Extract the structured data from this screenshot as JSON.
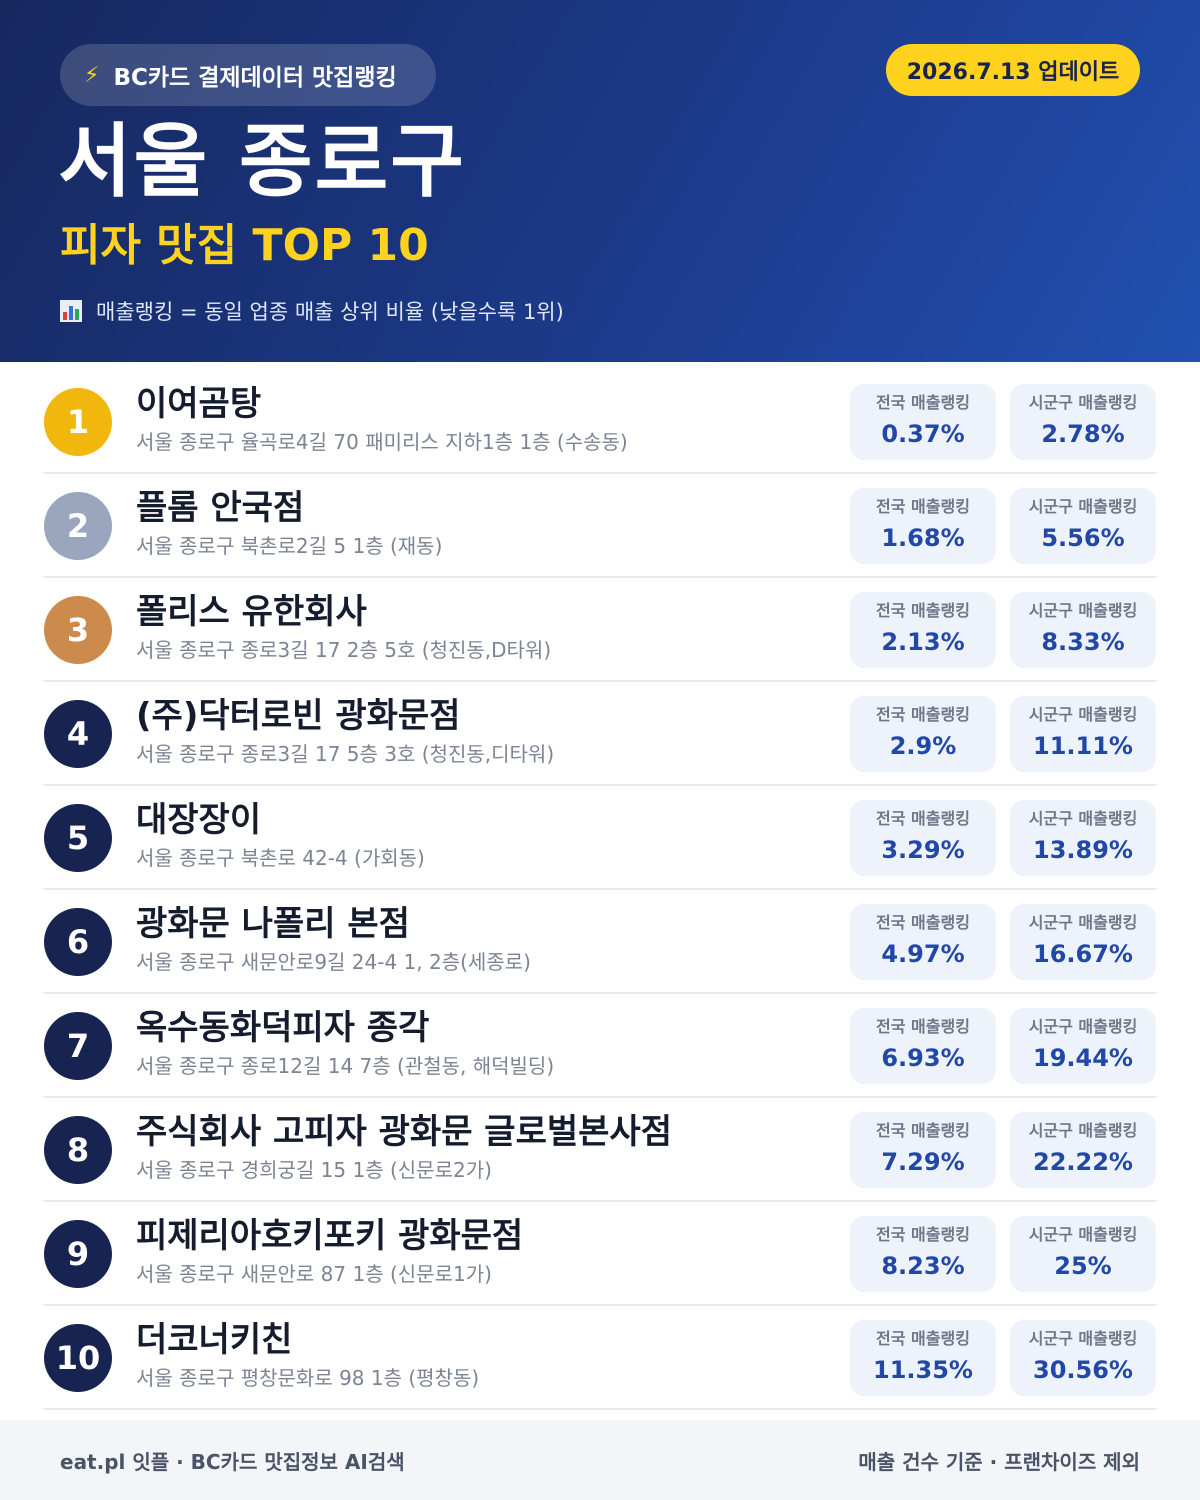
{
  "header": {
    "source_label": "BC카드 결제데이터 맛집랭킹",
    "update_label": "2026.7.13 업데이트",
    "region": "서울 종로구",
    "subtitle": "피자 맛집 TOP 10",
    "legend_note": "매출랭킹 = 동일 업종 매출 상위 비율 (낮을수록 1위)"
  },
  "stat_labels": {
    "national": "전국 매출랭킹",
    "district": "시군구 매출랭킹"
  },
  "accent_colors": {
    "navy": "#172452",
    "yellow": "#ffd21e",
    "gold": "#f2b70c",
    "silver": "#9aa6bd",
    "bronze": "#cc8a4c",
    "value_blue": "#2148a8"
  },
  "restaurants": [
    {
      "rank": "1",
      "name": "이여곰탕",
      "address": "서울 종로구 율곡로4길 70 패미리스 지하1층 1층 (수송동)",
      "national": "0.37%",
      "district": "2.78%"
    },
    {
      "rank": "2",
      "name": "플롬 안국점",
      "address": "서울 종로구 북촌로2길 5 1층 (재동)",
      "national": "1.68%",
      "district": "5.56%"
    },
    {
      "rank": "3",
      "name": "폴리스 유한회사",
      "address": "서울 종로구 종로3길 17 2층 5호 (청진동,D타워)",
      "national": "2.13%",
      "district": "8.33%"
    },
    {
      "rank": "4",
      "name": "(주)닥터로빈 광화문점",
      "address": "서울 종로구 종로3길 17 5층 3호 (청진동,디타워)",
      "national": "2.9%",
      "district": "11.11%"
    },
    {
      "rank": "5",
      "name": "대장장이",
      "address": "서울 종로구 북촌로 42-4 (가회동)",
      "national": "3.29%",
      "district": "13.89%"
    },
    {
      "rank": "6",
      "name": "광화문 나폴리 본점",
      "address": "서울 종로구 새문안로9길 24-4 1, 2층(세종로)",
      "national": "4.97%",
      "district": "16.67%"
    },
    {
      "rank": "7",
      "name": "옥수동화덕피자 종각",
      "address": "서울 종로구 종로12길 14 7층 (관철동, 해덕빌딩)",
      "national": "6.93%",
      "district": "19.44%"
    },
    {
      "rank": "8",
      "name": "주식회사 고피자 광화문 글로벌본사점",
      "address": "서울 종로구 경희궁길 15 1층 (신문로2가)",
      "national": "7.29%",
      "district": "22.22%"
    },
    {
      "rank": "9",
      "name": "피제리아호키포키 광화문점",
      "address": "서울 종로구 새문안로 87 1층 (신문로1가)",
      "national": "8.23%",
      "district": "25%"
    },
    {
      "rank": "10",
      "name": "더코너키친",
      "address": "서울 종로구 평창문화로 98 1층 (평창동)",
      "national": "11.35%",
      "district": "30.56%"
    }
  ],
  "footer": {
    "left": "eat.pl 잇플 · BC카드 맛집정보 AI검색",
    "right": "매출 건수 기준 · 프랜차이즈 제외"
  }
}
